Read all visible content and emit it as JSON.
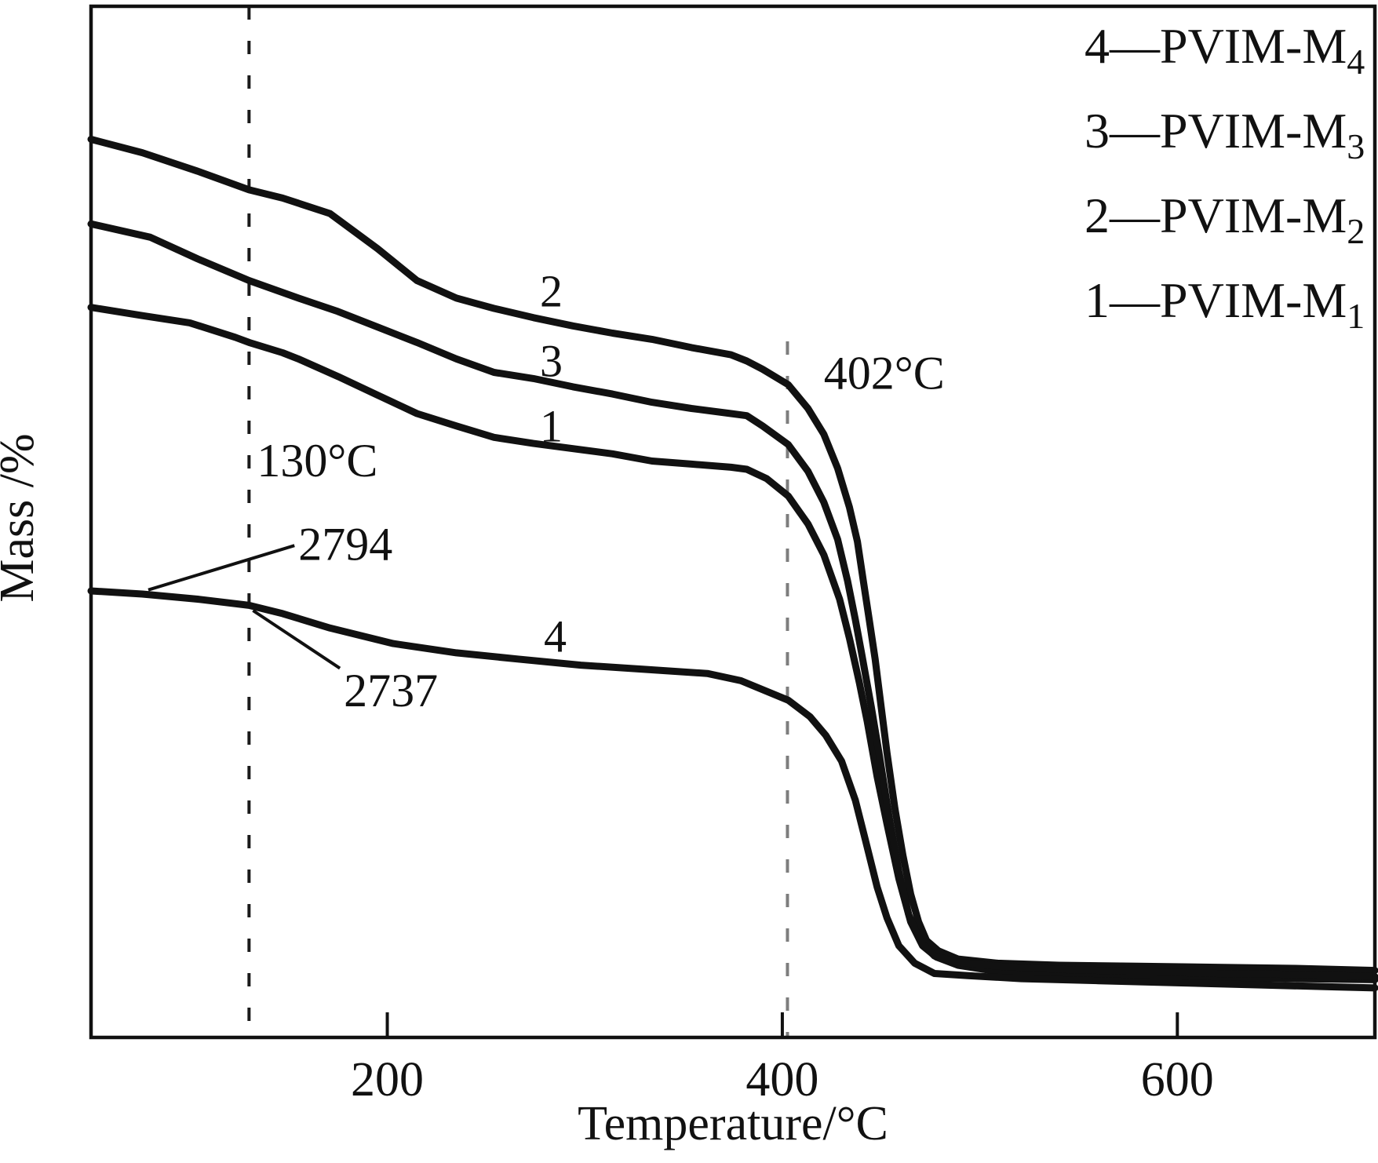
{
  "figure": {
    "background": "#ffffff",
    "ink": "#111111"
  },
  "chart_data": {
    "type": "line",
    "title": "",
    "xlabel": "Temperature/°C",
    "ylabel": "Mass /%",
    "xlim": [
      50,
      700
    ],
    "ylim": [
      0,
      100
    ],
    "x_ticks": [
      200,
      400,
      600
    ],
    "y_ticks": [],
    "grid": false,
    "legend_position": "top-right",
    "y_axis_note": "Source y-axis shows no numeric labels; mass values are estimated as percent of full plot height.",
    "line_color": "#111111",
    "series": [
      {
        "name": "PVIM-M1",
        "curve_number": "1",
        "label_at": [
          283,
          57.8
        ],
        "points": [
          [
            50,
            70.8
          ],
          [
            76,
            70.0
          ],
          [
            100,
            69.3
          ],
          [
            123,
            67.9
          ],
          [
            130,
            67.4
          ],
          [
            147,
            66.4
          ],
          [
            155,
            65.8
          ],
          [
            175,
            64.1
          ],
          [
            195,
            62.3
          ],
          [
            215,
            60.5
          ],
          [
            235,
            59.3
          ],
          [
            254,
            58.2
          ],
          [
            274,
            57.6
          ],
          [
            294,
            57.1
          ],
          [
            314,
            56.6
          ],
          [
            334,
            55.9
          ],
          [
            354,
            55.6
          ],
          [
            374,
            55.3
          ],
          [
            382,
            55.1
          ],
          [
            392,
            54.2
          ],
          [
            403,
            52.5
          ],
          [
            413,
            49.8
          ],
          [
            421,
            46.8
          ],
          [
            429,
            42.5
          ],
          [
            434,
            38.7
          ],
          [
            439,
            34.4
          ],
          [
            443,
            30.6
          ],
          [
            448,
            25.3
          ],
          [
            453,
            20.7
          ],
          [
            459,
            15.4
          ],
          [
            465,
            11.2
          ],
          [
            471,
            8.9
          ],
          [
            478,
            7.8
          ],
          [
            489,
            7.0
          ],
          [
            509,
            6.4
          ],
          [
            540,
            6.2
          ],
          [
            580,
            6.0
          ],
          [
            620,
            5.8
          ],
          [
            660,
            5.7
          ],
          [
            700,
            5.6
          ]
        ]
      },
      {
        "name": "PVIM-M2",
        "curve_number": "2",
        "label_at": [
          283,
          70.9
        ],
        "points": [
          [
            50,
            87.1
          ],
          [
            76,
            85.8
          ],
          [
            104,
            84.0
          ],
          [
            130,
            82.2
          ],
          [
            147,
            81.4
          ],
          [
            171,
            79.9
          ],
          [
            195,
            76.5
          ],
          [
            215,
            73.4
          ],
          [
            235,
            71.7
          ],
          [
            254,
            70.7
          ],
          [
            274,
            69.8
          ],
          [
            294,
            69.0
          ],
          [
            314,
            68.3
          ],
          [
            334,
            67.7
          ],
          [
            354,
            66.9
          ],
          [
            374,
            66.2
          ],
          [
            382,
            65.6
          ],
          [
            390,
            64.8
          ],
          [
            403,
            63.3
          ],
          [
            413,
            61.0
          ],
          [
            421,
            58.5
          ],
          [
            428,
            55.2
          ],
          [
            434,
            51.4
          ],
          [
            438,
            48.1
          ],
          [
            441,
            44.3
          ],
          [
            444,
            40.5
          ],
          [
            447,
            36.7
          ],
          [
            450,
            32.1
          ],
          [
            453,
            27.6
          ],
          [
            457,
            22.2
          ],
          [
            461,
            17.7
          ],
          [
            465,
            13.9
          ],
          [
            469,
            11.2
          ],
          [
            473,
            9.4
          ],
          [
            479,
            8.4
          ],
          [
            489,
            7.6
          ],
          [
            509,
            7.2
          ],
          [
            540,
            7.0
          ],
          [
            580,
            6.9
          ],
          [
            620,
            6.8
          ],
          [
            660,
            6.7
          ],
          [
            700,
            6.5
          ]
        ]
      },
      {
        "name": "PVIM-M3",
        "curve_number": "3",
        "label_at": [
          283,
          64.1
        ],
        "points": [
          [
            50,
            78.9
          ],
          [
            80,
            77.6
          ],
          [
            104,
            75.5
          ],
          [
            130,
            73.4
          ],
          [
            155,
            71.7
          ],
          [
            175,
            70.4
          ],
          [
            195,
            68.9
          ],
          [
            215,
            67.4
          ],
          [
            235,
            65.8
          ],
          [
            254,
            64.5
          ],
          [
            274,
            63.9
          ],
          [
            294,
            63.1
          ],
          [
            314,
            62.4
          ],
          [
            334,
            61.6
          ],
          [
            354,
            61.0
          ],
          [
            374,
            60.5
          ],
          [
            382,
            60.3
          ],
          [
            390,
            59.3
          ],
          [
            403,
            57.5
          ],
          [
            413,
            54.9
          ],
          [
            421,
            51.9
          ],
          [
            428,
            48.3
          ],
          [
            433,
            44.3
          ],
          [
            437,
            40.5
          ],
          [
            440,
            37.4
          ],
          [
            445,
            32.1
          ],
          [
            449,
            27.5
          ],
          [
            454,
            21.5
          ],
          [
            459,
            16.1
          ],
          [
            464,
            11.9
          ],
          [
            470,
            9.3
          ],
          [
            477,
            7.9
          ],
          [
            489,
            7.3
          ],
          [
            509,
            6.9
          ],
          [
            540,
            6.6
          ],
          [
            580,
            6.4
          ],
          [
            620,
            6.2
          ],
          [
            660,
            6.1
          ],
          [
            700,
            5.9
          ]
        ]
      },
      {
        "name": "PVIM-M4",
        "curve_number": "4",
        "label_at": [
          285,
          37.4
        ],
        "points": [
          [
            50,
            43.3
          ],
          [
            76,
            43.0
          ],
          [
            104,
            42.5
          ],
          [
            130,
            41.9
          ],
          [
            147,
            41.1
          ],
          [
            171,
            39.7
          ],
          [
            203,
            38.2
          ],
          [
            235,
            37.3
          ],
          [
            266,
            36.7
          ],
          [
            298,
            36.1
          ],
          [
            330,
            35.7
          ],
          [
            362,
            35.3
          ],
          [
            379,
            34.6
          ],
          [
            403,
            32.7
          ],
          [
            414,
            31.1
          ],
          [
            422,
            29.3
          ],
          [
            430,
            26.8
          ],
          [
            437,
            23.0
          ],
          [
            442,
            19.2
          ],
          [
            448,
            14.6
          ],
          [
            453,
            11.6
          ],
          [
            459,
            8.9
          ],
          [
            467,
            7.2
          ],
          [
            477,
            6.2
          ],
          [
            494,
            6.0
          ],
          [
            521,
            5.7
          ],
          [
            560,
            5.5
          ],
          [
            600,
            5.3
          ],
          [
            640,
            5.1
          ],
          [
            680,
            4.9
          ],
          [
            700,
            4.8
          ]
        ]
      }
    ],
    "reference_lines": [
      {
        "id": "130c",
        "x": 130,
        "color": "#1a1a1a",
        "dash": [
          17,
          27
        ],
        "m_span": [
          0,
          100
        ]
      },
      {
        "id": "402c",
        "x": 402.6,
        "color": "#7d7d7d",
        "dash": [
          17,
          27
        ],
        "m_span": [
          0,
          67.5
        ]
      }
    ],
    "annotations": [
      {
        "id": "130c",
        "text": "130°C",
        "t": 134,
        "m": 54.4,
        "anchor": "start"
      },
      {
        "id": "402c",
        "text": "402°C",
        "t": 421,
        "m": 62.9,
        "anchor": "start"
      },
      {
        "id": "2794",
        "text": "2794",
        "t": 155,
        "m": 46.3,
        "anchor": "start"
      },
      {
        "id": "2737",
        "text": "2737",
        "t": 178,
        "m": 32.1,
        "anchor": "start"
      }
    ],
    "leader_lines": [
      {
        "for": "2794",
        "from_tm": [
          153,
          47.7
        ],
        "to_tm": [
          79,
          43.4
        ]
      },
      {
        "for": "2737",
        "from_tm": [
          176,
          35.8
        ],
        "to_tm": [
          132,
          41.4
        ]
      }
    ],
    "legend": {
      "entries": [
        {
          "text": "4—PVIM-M",
          "sub": "4"
        },
        {
          "text": "3—PVIM-M",
          "sub": "3"
        },
        {
          "text": "2—PVIM-M",
          "sub": "2"
        },
        {
          "text": "1—PVIM-M",
          "sub": "1"
        }
      ]
    }
  }
}
